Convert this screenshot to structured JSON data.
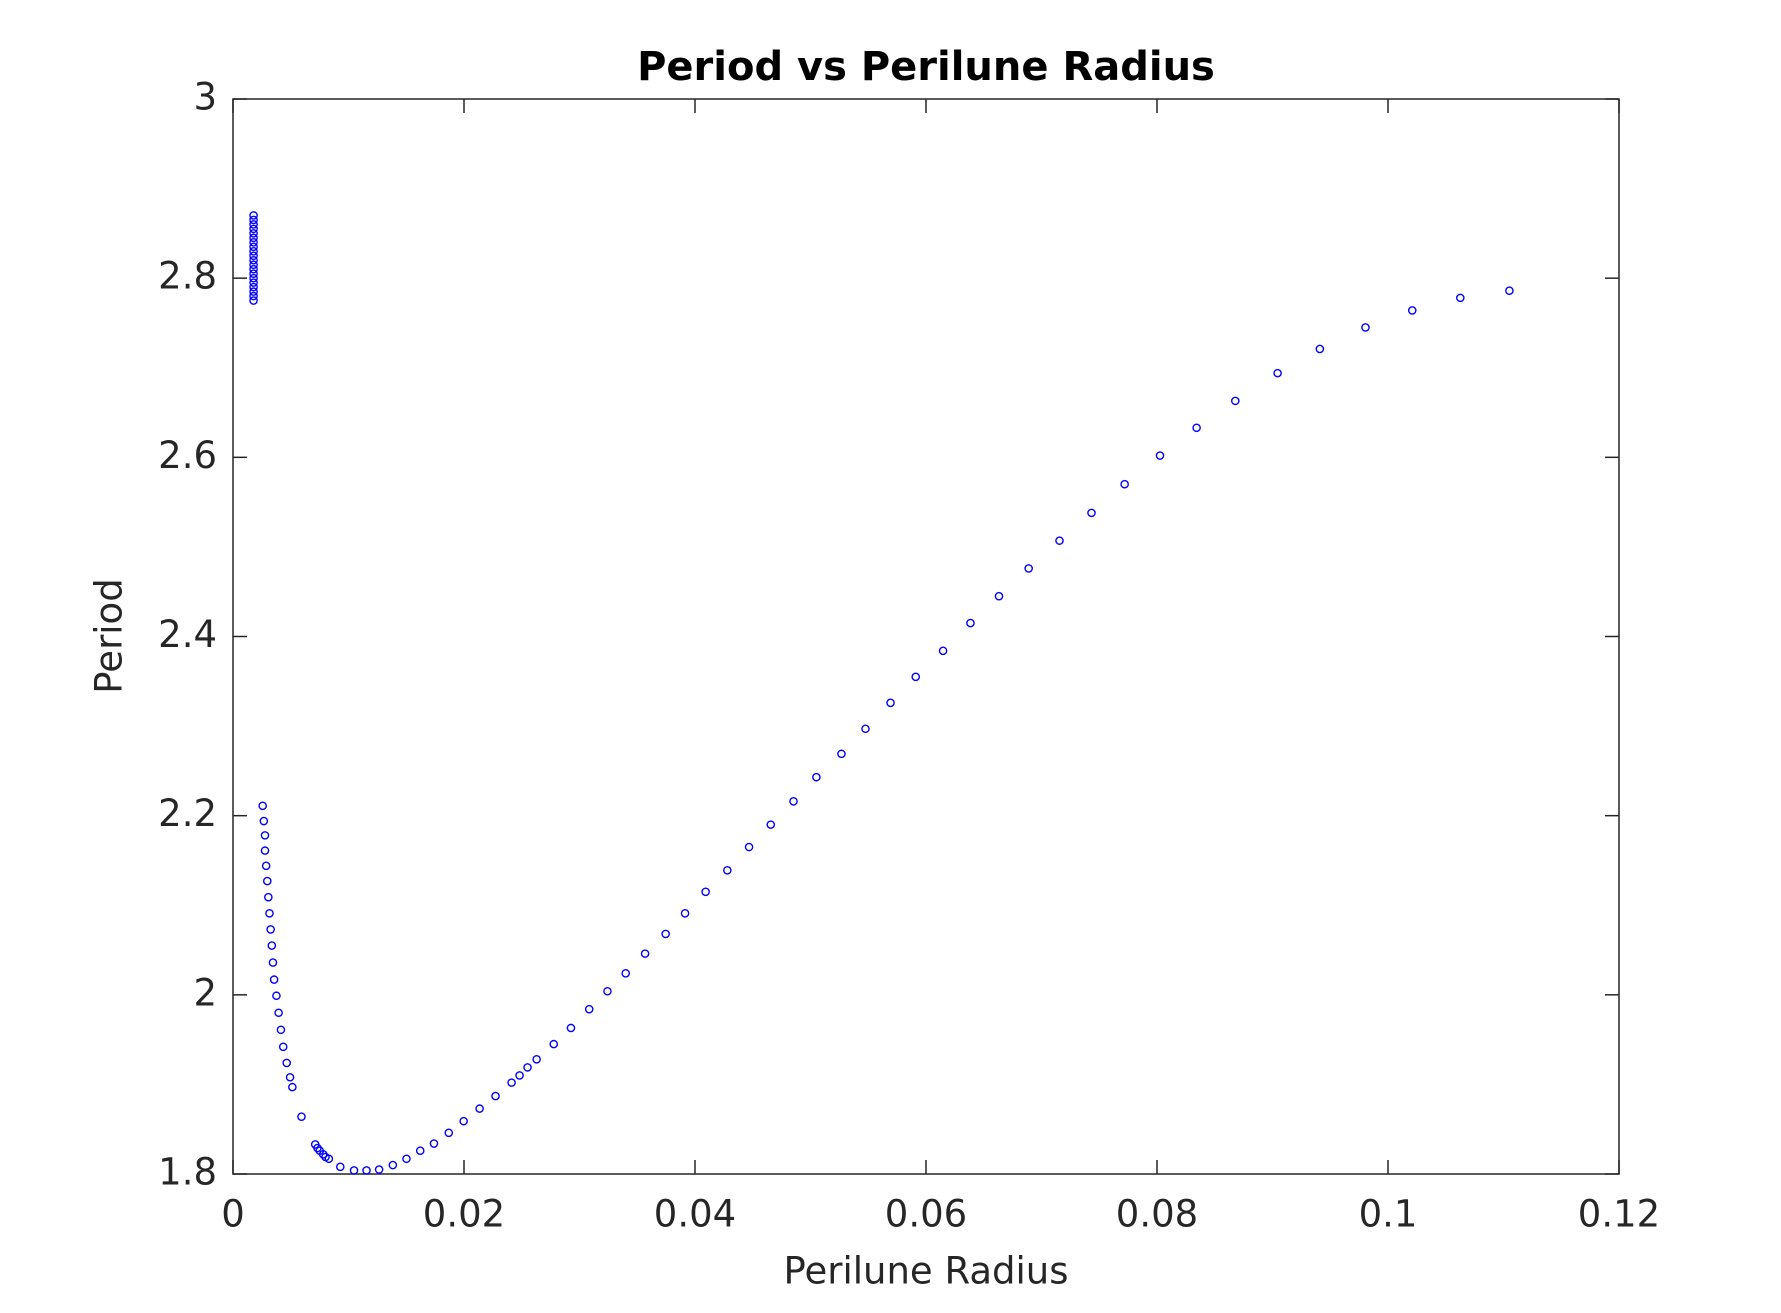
{
  "chart_data": {
    "type": "scatter",
    "title": "Period vs Perilune Radius",
    "x_label": "Perilune Radius",
    "y_label": "Period",
    "xlim": [
      0,
      0.12
    ],
    "xticks": [
      0,
      0.02,
      0.04,
      0.06,
      0.08,
      0.1,
      0.12
    ],
    "ylim": [
      1.8,
      3
    ],
    "yticks": [
      1.8,
      2,
      2.2,
      2.4,
      2.6,
      2.8,
      3
    ],
    "grid": false,
    "box": true,
    "series": [
      {
        "color": "#0000ff",
        "x": [
          0.00178,
          0.00178,
          0.00178,
          0.00178,
          0.00178,
          0.00178,
          0.00178,
          0.00178,
          0.00178,
          0.00178,
          0.00178,
          0.00178,
          0.00178,
          0.00178,
          0.00178,
          0.00178,
          0.00178,
          0.00178,
          0.00178,
          0.00178,
          0.00257,
          0.00267,
          0.00277,
          0.00277,
          0.00287,
          0.00297,
          0.00306,
          0.00316,
          0.00326,
          0.00336,
          0.00346,
          0.00356,
          0.00376,
          0.00395,
          0.00415,
          0.00435,
          0.00465,
          0.00494,
          0.00514,
          0.00593,
          0.00712,
          0.00731,
          0.00751,
          0.00781,
          0.00801,
          0.0083,
          0.00929,
          0.01048,
          0.01156,
          0.01265,
          0.01384,
          0.01502,
          0.01621,
          0.0174,
          0.01868,
          0.01997,
          0.02135,
          0.02273,
          0.02412,
          0.02481,
          0.0255,
          0.02629,
          0.02777,
          0.02926,
          0.03084,
          0.03242,
          0.034,
          0.03568,
          0.03746,
          0.03914,
          0.04092,
          0.0428,
          0.04468,
          0.04656,
          0.04853,
          0.05051,
          0.05268,
          0.05476,
          0.05693,
          0.05911,
          0.06148,
          0.06385,
          0.06632,
          0.06889,
          0.07156,
          0.07433,
          0.0772,
          0.08026,
          0.08343,
          0.08678,
          0.09044,
          0.0941,
          0.09805,
          0.1021,
          0.10626,
          0.11051
        ],
        "values": [
          2.775,
          2.78,
          2.785,
          2.79,
          2.795,
          2.8,
          2.805,
          2.81,
          2.815,
          2.82,
          2.825,
          2.83,
          2.835,
          2.84,
          2.845,
          2.85,
          2.855,
          2.86,
          2.865,
          2.87,
          2.211,
          2.194,
          2.178,
          2.161,
          2.144,
          2.127,
          2.109,
          2.091,
          2.073,
          2.055,
          2.036,
          2.017,
          1.999,
          1.98,
          1.961,
          1.942,
          1.924,
          1.908,
          1.897,
          1.864,
          1.833,
          1.829,
          1.826,
          1.822,
          1.819,
          1.817,
          1.808,
          1.804,
          1.804,
          1.805,
          1.81,
          1.817,
          1.826,
          1.834,
          1.846,
          1.859,
          1.873,
          1.887,
          1.902,
          1.91,
          1.919,
          1.928,
          1.945,
          1.963,
          1.984,
          2.004,
          2.024,
          2.046,
          2.068,
          2.091,
          2.115,
          2.139,
          2.165,
          2.19,
          2.216,
          2.243,
          2.269,
          2.297,
          2.326,
          2.355,
          2.384,
          2.415,
          2.445,
          2.476,
          2.507,
          2.538,
          2.57,
          2.602,
          2.633,
          2.663,
          2.694,
          2.721,
          2.745,
          2.764,
          2.778,
          2.786
        ]
      }
    ]
  }
}
